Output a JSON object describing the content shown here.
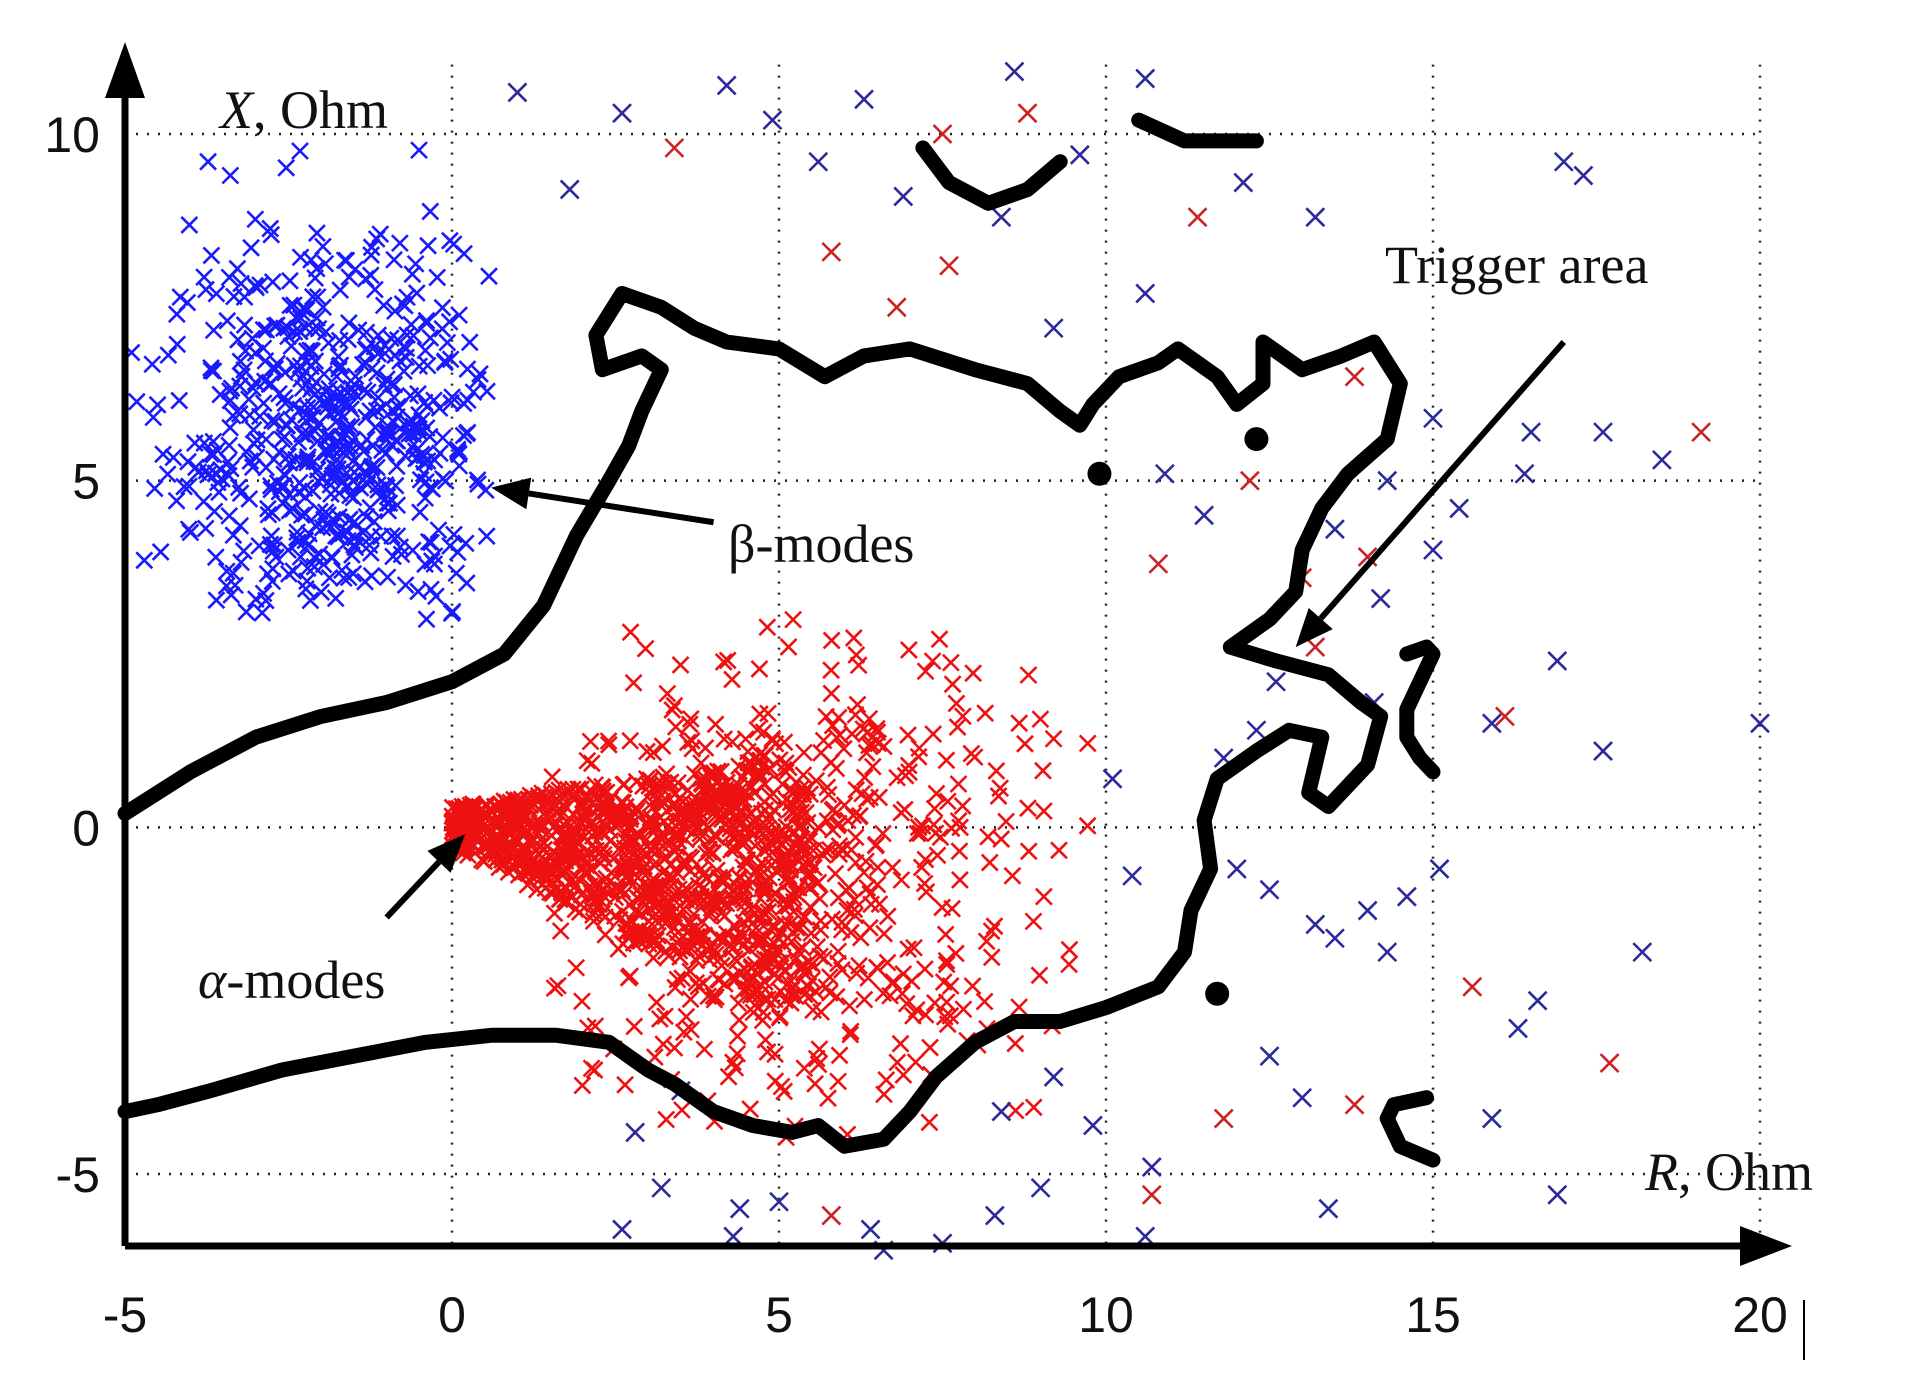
{
  "chart_data": {
    "type": "scatter",
    "title": "",
    "xlabel": {
      "var": "R",
      "unit": ", Ohm"
    },
    "ylabel": {
      "var": "X",
      "unit": ", Ohm"
    },
    "xlim": [
      -5,
      20
    ],
    "ylim": [
      -6,
      11
    ],
    "x_ticks": [
      -5,
      0,
      5,
      10,
      15,
      20
    ],
    "y_ticks": [
      -5,
      0,
      5,
      10
    ],
    "x_tick_labels": [
      "-5",
      "0",
      "5",
      "10",
      "15",
      "20"
    ],
    "y_tick_labels": [
      "-5",
      "0",
      "5",
      "10"
    ],
    "grid": true,
    "marker": "x",
    "colors": {
      "beta": "#1a1aff",
      "alpha": "#ee1111",
      "scatter_blue": "#2a2a9a",
      "scatter_red": "#cc2222",
      "boundary": "#000000"
    },
    "clusters": [
      {
        "color": "beta",
        "center": [
          -1.8,
          5.6
        ],
        "spread": [
          1.3,
          1.4
        ],
        "count": 650,
        "xrange": [
          -5,
          0.6
        ],
        "yrange": [
          3,
          10
        ]
      },
      {
        "color": "alpha",
        "center": [
          2.2,
          -0.3
        ],
        "spread": [
          1.2,
          0.9
        ],
        "count": 900,
        "xrange": [
          0,
          6
        ],
        "yrange": [
          -2.5,
          1.5
        ]
      },
      {
        "color": "alpha",
        "center": [
          5.0,
          -0.8
        ],
        "spread": [
          2.0,
          1.8
        ],
        "count": 650,
        "xrange": [
          1.5,
          10
        ],
        "yrange": [
          -4.5,
          3
        ]
      }
    ],
    "scatter_points": [
      {
        "x": 1.0,
        "y": 10.6,
        "c": "scatter_blue"
      },
      {
        "x": 1.8,
        "y": 9.2,
        "c": "scatter_blue"
      },
      {
        "x": 2.6,
        "y": 10.3,
        "c": "scatter_blue"
      },
      {
        "x": 3.4,
        "y": 9.8,
        "c": "scatter_red"
      },
      {
        "x": 4.2,
        "y": 10.7,
        "c": "scatter_blue"
      },
      {
        "x": 4.9,
        "y": 10.2,
        "c": "scatter_blue"
      },
      {
        "x": 5.6,
        "y": 9.6,
        "c": "scatter_blue"
      },
      {
        "x": 6.3,
        "y": 10.5,
        "c": "scatter_blue"
      },
      {
        "x": 6.9,
        "y": 9.1,
        "c": "scatter_blue"
      },
      {
        "x": 7.5,
        "y": 10.0,
        "c": "scatter_red"
      },
      {
        "x": 8.6,
        "y": 10.9,
        "c": "scatter_blue"
      },
      {
        "x": 8.8,
        "y": 10.3,
        "c": "scatter_red"
      },
      {
        "x": 9.6,
        "y": 9.7,
        "c": "scatter_blue"
      },
      {
        "x": 10.6,
        "y": 10.8,
        "c": "scatter_blue"
      },
      {
        "x": 11.4,
        "y": 8.8,
        "c": "scatter_red"
      },
      {
        "x": 12.1,
        "y": 9.3,
        "c": "scatter_blue"
      },
      {
        "x": 13.2,
        "y": 8.8,
        "c": "scatter_blue"
      },
      {
        "x": 17.0,
        "y": 9.6,
        "c": "scatter_blue"
      },
      {
        "x": 17.3,
        "y": 9.4,
        "c": "scatter_blue"
      },
      {
        "x": 5.8,
        "y": 8.3,
        "c": "scatter_red"
      },
      {
        "x": 6.8,
        "y": 7.5,
        "c": "scatter_red"
      },
      {
        "x": 7.6,
        "y": 8.1,
        "c": "scatter_red"
      },
      {
        "x": 8.4,
        "y": 8.8,
        "c": "scatter_blue"
      },
      {
        "x": 9.2,
        "y": 7.2,
        "c": "scatter_blue"
      },
      {
        "x": 10.6,
        "y": 7.7,
        "c": "scatter_blue"
      },
      {
        "x": 13.8,
        "y": 6.5,
        "c": "scatter_red"
      },
      {
        "x": 15.0,
        "y": 5.9,
        "c": "scatter_blue"
      },
      {
        "x": 16.5,
        "y": 5.7,
        "c": "scatter_blue"
      },
      {
        "x": 16.4,
        "y": 5.1,
        "c": "scatter_blue"
      },
      {
        "x": 17.6,
        "y": 5.7,
        "c": "scatter_blue"
      },
      {
        "x": 18.5,
        "y": 5.3,
        "c": "scatter_blue"
      },
      {
        "x": 19.1,
        "y": 5.7,
        "c": "scatter_red"
      },
      {
        "x": 15.4,
        "y": 4.6,
        "c": "scatter_blue"
      },
      {
        "x": 14.3,
        "y": 5.0,
        "c": "scatter_blue"
      },
      {
        "x": 13.5,
        "y": 4.3,
        "c": "scatter_blue"
      },
      {
        "x": 15.0,
        "y": 4.0,
        "c": "scatter_blue"
      },
      {
        "x": 14.2,
        "y": 3.3,
        "c": "scatter_blue"
      },
      {
        "x": 16.9,
        "y": 2.4,
        "c": "scatter_blue"
      },
      {
        "x": 16.1,
        "y": 1.6,
        "c": "scatter_red"
      },
      {
        "x": 15.9,
        "y": 1.5,
        "c": "scatter_blue"
      },
      {
        "x": 17.6,
        "y": 1.1,
        "c": "scatter_blue"
      },
      {
        "x": 20.0,
        "y": 1.5,
        "c": "scatter_blue"
      },
      {
        "x": 14.1,
        "y": 1.8,
        "c": "scatter_blue"
      },
      {
        "x": 12.3,
        "y": 1.4,
        "c": "scatter_blue"
      },
      {
        "x": 11.8,
        "y": 1.0,
        "c": "scatter_blue"
      },
      {
        "x": 10.9,
        "y": 5.1,
        "c": "scatter_blue"
      },
      {
        "x": 11.5,
        "y": 4.5,
        "c": "scatter_blue"
      },
      {
        "x": 10.8,
        "y": 3.8,
        "c": "scatter_red"
      },
      {
        "x": 12.0,
        "y": -0.6,
        "c": "scatter_blue"
      },
      {
        "x": 12.5,
        "y": -0.9,
        "c": "scatter_blue"
      },
      {
        "x": 13.2,
        "y": -1.4,
        "c": "scatter_blue"
      },
      {
        "x": 13.5,
        "y": -1.6,
        "c": "scatter_blue"
      },
      {
        "x": 14.0,
        "y": -1.2,
        "c": "scatter_blue"
      },
      {
        "x": 14.3,
        "y": -1.8,
        "c": "scatter_blue"
      },
      {
        "x": 15.1,
        "y": -0.6,
        "c": "scatter_blue"
      },
      {
        "x": 14.6,
        "y": -1.0,
        "c": "scatter_blue"
      },
      {
        "x": 15.6,
        "y": -2.3,
        "c": "scatter_red"
      },
      {
        "x": 16.6,
        "y": -2.5,
        "c": "scatter_blue"
      },
      {
        "x": 16.3,
        "y": -2.9,
        "c": "scatter_blue"
      },
      {
        "x": 17.7,
        "y": -3.4,
        "c": "scatter_red"
      },
      {
        "x": 18.2,
        "y": -1.8,
        "c": "scatter_blue"
      },
      {
        "x": 12.5,
        "y": -3.3,
        "c": "scatter_blue"
      },
      {
        "x": 13.0,
        "y": -3.9,
        "c": "scatter_blue"
      },
      {
        "x": 13.8,
        "y": -4.0,
        "c": "scatter_red"
      },
      {
        "x": 11.8,
        "y": -4.2,
        "c": "scatter_red"
      },
      {
        "x": 15.9,
        "y": -4.2,
        "c": "scatter_blue"
      },
      {
        "x": 13.4,
        "y": -5.5,
        "c": "scatter_blue"
      },
      {
        "x": 16.9,
        "y": -5.3,
        "c": "scatter_blue"
      },
      {
        "x": 10.7,
        "y": -4.9,
        "c": "scatter_blue"
      },
      {
        "x": 10.7,
        "y": -5.3,
        "c": "scatter_red"
      },
      {
        "x": 10.6,
        "y": -5.9,
        "c": "scatter_blue"
      },
      {
        "x": 9.0,
        "y": -5.2,
        "c": "scatter_blue"
      },
      {
        "x": 8.3,
        "y": -5.6,
        "c": "scatter_blue"
      },
      {
        "x": 7.5,
        "y": -6.0,
        "c": "scatter_blue"
      },
      {
        "x": 6.6,
        "y": -6.1,
        "c": "scatter_blue"
      },
      {
        "x": 5.8,
        "y": -5.6,
        "c": "scatter_red"
      },
      {
        "x": 5.0,
        "y": -5.4,
        "c": "scatter_blue"
      },
      {
        "x": 4.3,
        "y": -5.9,
        "c": "scatter_blue"
      },
      {
        "x": 3.2,
        "y": -5.2,
        "c": "scatter_blue"
      },
      {
        "x": 2.6,
        "y": -5.8,
        "c": "scatter_blue"
      },
      {
        "x": 2.8,
        "y": -4.4,
        "c": "scatter_blue"
      },
      {
        "x": 3.5,
        "y": -3.8,
        "c": "scatter_blue"
      },
      {
        "x": 4.4,
        "y": -5.5,
        "c": "scatter_blue"
      },
      {
        "x": 6.4,
        "y": -5.8,
        "c": "scatter_blue"
      },
      {
        "x": 9.8,
        "y": -4.3,
        "c": "scatter_blue"
      },
      {
        "x": 9.2,
        "y": -3.6,
        "c": "scatter_blue"
      },
      {
        "x": 8.4,
        "y": -4.1,
        "c": "scatter_blue"
      },
      {
        "x": 12.6,
        "y": 2.1,
        "c": "scatter_blue"
      },
      {
        "x": 13.2,
        "y": 2.6,
        "c": "scatter_red"
      },
      {
        "x": 13.0,
        "y": 3.6,
        "c": "scatter_red"
      },
      {
        "x": 14.0,
        "y": 3.9,
        "c": "scatter_red"
      },
      {
        "x": 12.2,
        "y": 5.0,
        "c": "scatter_red"
      },
      {
        "x": 10.1,
        "y": 0.7,
        "c": "scatter_blue"
      },
      {
        "x": 10.4,
        "y": -0.7,
        "c": "scatter_blue"
      }
    ],
    "boundary_curves": [
      {
        "name": "upper-left",
        "points": [
          [
            -5,
            0.2
          ],
          [
            -4,
            0.8
          ],
          [
            -3,
            1.3
          ],
          [
            -2,
            1.6
          ],
          [
            -1,
            1.8
          ],
          [
            0,
            2.1
          ],
          [
            0.8,
            2.5
          ],
          [
            1.4,
            3.2
          ],
          [
            1.9,
            4.2
          ],
          [
            2.4,
            5.0
          ],
          [
            2.7,
            5.5
          ],
          [
            2.9,
            6.0
          ],
          [
            3.2,
            6.6
          ],
          [
            2.9,
            6.8
          ],
          [
            2.3,
            6.6
          ],
          [
            2.2,
            7.1
          ],
          [
            2.6,
            7.7
          ],
          [
            3.2,
            7.5
          ],
          [
            3.7,
            7.2
          ],
          [
            4.2,
            7.0
          ],
          [
            5.0,
            6.9
          ],
          [
            5.7,
            6.5
          ],
          [
            6.3,
            6.8
          ],
          [
            7.0,
            6.9
          ],
          [
            8.0,
            6.6
          ],
          [
            8.8,
            6.4
          ],
          [
            9.3,
            6.0
          ],
          [
            9.6,
            5.8
          ],
          [
            9.8,
            6.1
          ],
          [
            10.2,
            6.5
          ],
          [
            10.8,
            6.7
          ],
          [
            11.1,
            6.9
          ],
          [
            11.7,
            6.5
          ],
          [
            12.0,
            6.1
          ],
          [
            12.4,
            6.4
          ],
          [
            12.4,
            7.0
          ],
          [
            13.0,
            6.6
          ],
          [
            13.6,
            6.8
          ],
          [
            14.1,
            7.0
          ],
          [
            14.5,
            6.4
          ],
          [
            14.3,
            5.6
          ],
          [
            13.7,
            5.1
          ],
          [
            13.3,
            4.6
          ],
          [
            13.0,
            4.0
          ],
          [
            12.9,
            3.4
          ],
          [
            12.5,
            3.0
          ],
          [
            11.9,
            2.6
          ],
          [
            12.6,
            2.4
          ],
          [
            13.4,
            2.2
          ],
          [
            13.9,
            1.8
          ],
          [
            14.2,
            1.6
          ],
          [
            14.0,
            0.9
          ],
          [
            13.4,
            0.3
          ],
          [
            13.1,
            0.5
          ],
          [
            13.3,
            1.3
          ],
          [
            12.8,
            1.4
          ],
          [
            12.3,
            1.1
          ],
          [
            11.7,
            0.7
          ],
          [
            11.5,
            0.1
          ],
          [
            11.6,
            -0.6
          ],
          [
            11.3,
            -1.2
          ],
          [
            11.2,
            -1.8
          ],
          [
            10.8,
            -2.3
          ],
          [
            10.0,
            -2.6
          ],
          [
            9.3,
            -2.8
          ],
          [
            8.6,
            -2.8
          ],
          [
            8.0,
            -3.1
          ],
          [
            7.4,
            -3.6
          ],
          [
            7.0,
            -4.1
          ],
          [
            6.6,
            -4.5
          ],
          [
            6.0,
            -4.6
          ],
          [
            5.6,
            -4.3
          ],
          [
            5.2,
            -4.4
          ],
          [
            4.6,
            -4.3
          ],
          [
            4.0,
            -4.1
          ],
          [
            3.4,
            -3.7
          ],
          [
            3.0,
            -3.5
          ],
          [
            2.4,
            -3.1
          ],
          [
            1.6,
            -3.0
          ],
          [
            0.6,
            -3.0
          ],
          [
            -0.4,
            -3.1
          ],
          [
            -1.5,
            -3.3
          ],
          [
            -2.6,
            -3.5
          ],
          [
            -3.7,
            -3.8
          ],
          [
            -4.5,
            -4.0
          ],
          [
            -5,
            -4.1
          ]
        ]
      },
      {
        "name": "top-curl",
        "points": [
          [
            7.2,
            9.8
          ],
          [
            7.6,
            9.3
          ],
          [
            8.2,
            9.0
          ],
          [
            8.8,
            9.2
          ],
          [
            9.3,
            9.6
          ]
        ]
      },
      {
        "name": "top-right-stroke",
        "points": [
          [
            10.5,
            10.2
          ],
          [
            11.2,
            9.9
          ],
          [
            12.0,
            9.9
          ],
          [
            12.3,
            9.9
          ]
        ]
      },
      {
        "name": "right-hook",
        "points": [
          [
            14.6,
            2.5
          ],
          [
            14.9,
            2.6
          ],
          [
            15.0,
            2.5
          ],
          [
            14.8,
            2.1
          ],
          [
            14.6,
            1.7
          ],
          [
            14.6,
            1.3
          ],
          [
            14.8,
            1.0
          ],
          [
            15.0,
            0.8
          ]
        ]
      },
      {
        "name": "bottom-right-bracket",
        "points": [
          [
            14.9,
            -3.9
          ],
          [
            14.4,
            -4.0
          ],
          [
            14.3,
            -4.2
          ],
          [
            14.5,
            -4.6
          ],
          [
            15.0,
            -4.8
          ]
        ]
      }
    ],
    "blobs": [
      [
        9.9,
        5.1
      ],
      [
        12.3,
        5.6
      ],
      [
        11.7,
        -2.4
      ]
    ],
    "annotations": [
      {
        "text": "Trigger area",
        "arrow_from": [
          17.0,
          7.0
        ],
        "arrow_to": [
          12.9,
          2.6
        ]
      },
      {
        "text": "β-modes",
        "arrow_from": [
          4.0,
          4.4
        ],
        "arrow_to": [
          0.6,
          4.9
        ]
      },
      {
        "text": "α-modes",
        "arrow_from": [
          -1.0,
          -1.3
        ],
        "arrow_to": [
          0.2,
          -0.1
        ]
      }
    ],
    "legend": null
  }
}
